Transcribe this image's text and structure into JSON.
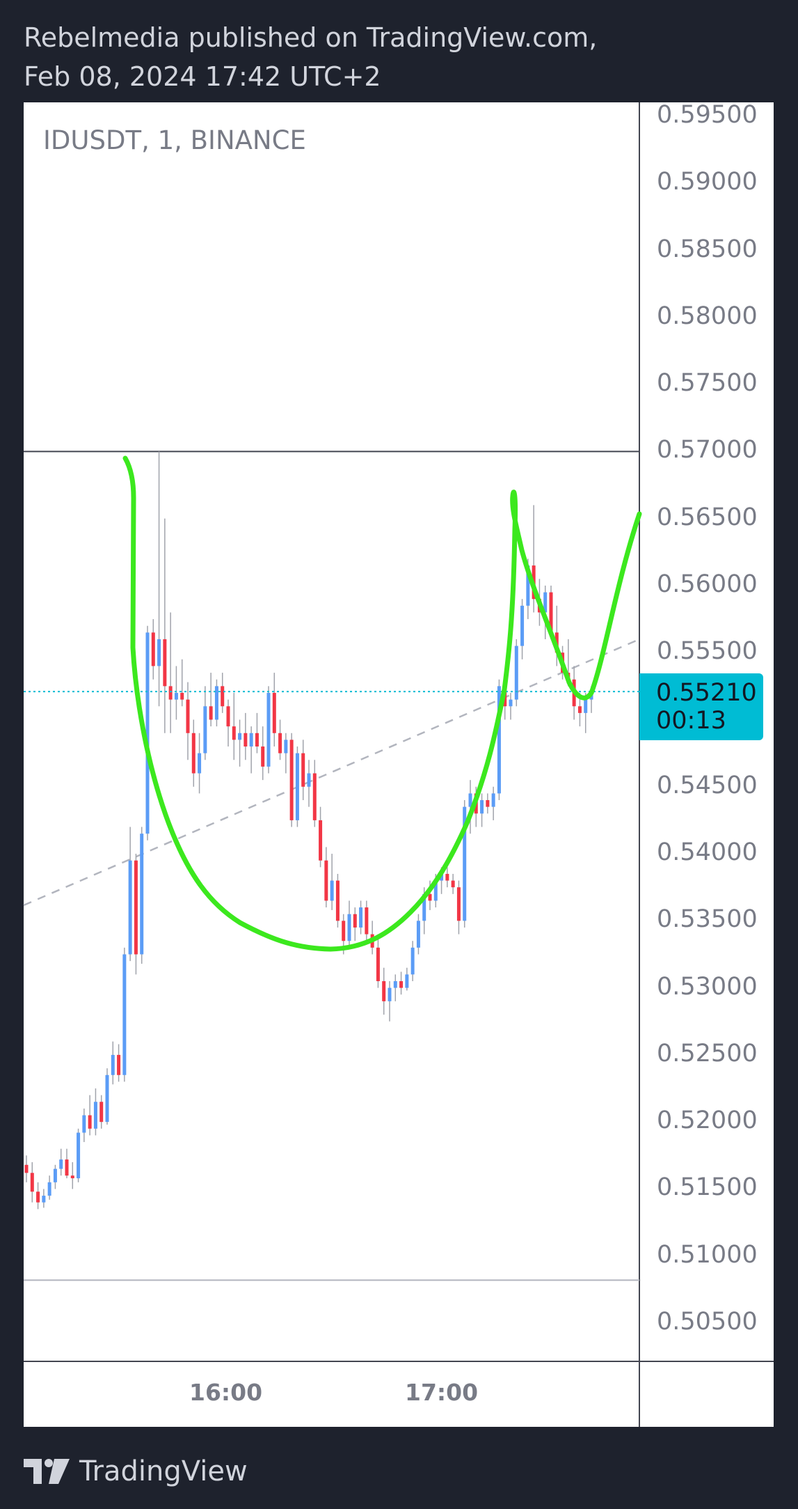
{
  "header": {
    "line1": "Rebelmedia published on TradingView.com,",
    "line2": "Feb 08, 2024 17:42 UTC+2"
  },
  "symbol": "IDUSDT, 1, BINANCE",
  "price_axis": [
    "0.59500",
    "0.59000",
    "0.58500",
    "0.58000",
    "0.57500",
    "0.57000",
    "0.56500",
    "0.56000",
    "0.55500",
    "0.55000",
    "0.54500",
    "0.54000",
    "0.53500",
    "0.53000",
    "0.52500",
    "0.52000",
    "0.51500",
    "0.51000",
    "0.50500"
  ],
  "current_price": {
    "price": "0.55210",
    "countdown": "00:13"
  },
  "time_axis": [
    "16:00",
    "17:00"
  ],
  "footer": {
    "brand": "TradingView"
  },
  "colors": {
    "up": "#5b9cf6",
    "down": "#f23645",
    "drawing": "#3ce81e",
    "price_line": "#00bcd4",
    "background": "#1e222d"
  },
  "chart_data": {
    "type": "candlestick",
    "ylim": [
      0.503,
      0.5965
    ],
    "current_price": 0.5521,
    "horizontal_lines": [
      0.57,
      0.5082
    ],
    "candles": [
      [
        0.5168,
        0.5175,
        0.5155,
        0.5162
      ],
      [
        0.5162,
        0.517,
        0.514,
        0.5148
      ],
      [
        0.5148,
        0.5155,
        0.5135,
        0.514
      ],
      [
        0.514,
        0.515,
        0.5136,
        0.5145
      ],
      [
        0.5145,
        0.516,
        0.5142,
        0.5155
      ],
      [
        0.5155,
        0.5168,
        0.515,
        0.5165
      ],
      [
        0.5165,
        0.518,
        0.516,
        0.5172
      ],
      [
        0.5172,
        0.518,
        0.5158,
        0.516
      ],
      [
        0.516,
        0.517,
        0.515,
        0.5158
      ],
      [
        0.5158,
        0.5195,
        0.5155,
        0.5192
      ],
      [
        0.5192,
        0.521,
        0.5185,
        0.5205
      ],
      [
        0.5205,
        0.522,
        0.519,
        0.5195
      ],
      [
        0.5195,
        0.5225,
        0.519,
        0.5215
      ],
      [
        0.5215,
        0.522,
        0.5195,
        0.52
      ],
      [
        0.52,
        0.524,
        0.5198,
        0.5235
      ],
      [
        0.5235,
        0.526,
        0.5228,
        0.525
      ],
      [
        0.525,
        0.5258,
        0.523,
        0.5235
      ],
      [
        0.5235,
        0.533,
        0.523,
        0.5325
      ],
      [
        0.5325,
        0.542,
        0.532,
        0.5395
      ],
      [
        0.5395,
        0.54,
        0.531,
        0.5325
      ],
      [
        0.5325,
        0.542,
        0.5318,
        0.5415
      ],
      [
        0.5415,
        0.557,
        0.541,
        0.5565
      ],
      [
        0.5565,
        0.5575,
        0.553,
        0.554
      ],
      [
        0.554,
        0.57,
        0.551,
        0.556
      ],
      [
        0.556,
        0.565,
        0.549,
        0.5525
      ],
      [
        0.5525,
        0.558,
        0.549,
        0.5515
      ],
      [
        0.5515,
        0.554,
        0.55,
        0.552
      ],
      [
        0.552,
        0.5545,
        0.551,
        0.5515
      ],
      [
        0.5515,
        0.5528,
        0.547,
        0.549
      ],
      [
        0.549,
        0.55,
        0.545,
        0.546
      ],
      [
        0.546,
        0.549,
        0.5445,
        0.5475
      ],
      [
        0.5475,
        0.5525,
        0.547,
        0.551
      ],
      [
        0.551,
        0.5535,
        0.5495,
        0.55
      ],
      [
        0.55,
        0.553,
        0.5495,
        0.5525
      ],
      [
        0.5525,
        0.5535,
        0.5505,
        0.551
      ],
      [
        0.551,
        0.5515,
        0.548,
        0.5495
      ],
      [
        0.5495,
        0.552,
        0.547,
        0.5485
      ],
      [
        0.5485,
        0.55,
        0.5465,
        0.549
      ],
      [
        0.549,
        0.5505,
        0.547,
        0.548
      ],
      [
        0.548,
        0.5495,
        0.546,
        0.549
      ],
      [
        0.549,
        0.5505,
        0.5475,
        0.548
      ],
      [
        0.548,
        0.5495,
        0.5455,
        0.5465
      ],
      [
        0.5465,
        0.5525,
        0.546,
        0.552
      ],
      [
        0.552,
        0.5535,
        0.548,
        0.549
      ],
      [
        0.549,
        0.55,
        0.547,
        0.5475
      ],
      [
        0.5475,
        0.549,
        0.546,
        0.5485
      ],
      [
        0.5485,
        0.549,
        0.542,
        0.5425
      ],
      [
        0.5425,
        0.548,
        0.542,
        0.5475
      ],
      [
        0.5475,
        0.5485,
        0.544,
        0.545
      ],
      [
        0.545,
        0.547,
        0.5435,
        0.546
      ],
      [
        0.546,
        0.547,
        0.542,
        0.5425
      ],
      [
        0.5425,
        0.5435,
        0.539,
        0.5395
      ],
      [
        0.5395,
        0.5405,
        0.536,
        0.5365
      ],
      [
        0.5365,
        0.54,
        0.5358,
        0.538
      ],
      [
        0.538,
        0.5385,
        0.5345,
        0.535
      ],
      [
        0.535,
        0.5355,
        0.5325,
        0.5335
      ],
      [
        0.5335,
        0.5365,
        0.533,
        0.5355
      ],
      [
        0.5355,
        0.536,
        0.5335,
        0.5345
      ],
      [
        0.5345,
        0.5365,
        0.534,
        0.536
      ],
      [
        0.536,
        0.5365,
        0.5335,
        0.534
      ],
      [
        0.534,
        0.535,
        0.5325,
        0.533
      ],
      [
        0.533,
        0.534,
        0.53,
        0.5305
      ],
      [
        0.5305,
        0.5315,
        0.528,
        0.529
      ],
      [
        0.529,
        0.5305,
        0.5275,
        0.53
      ],
      [
        0.53,
        0.531,
        0.529,
        0.5305
      ],
      [
        0.5305,
        0.5312,
        0.5295,
        0.53
      ],
      [
        0.53,
        0.5315,
        0.5298,
        0.531
      ],
      [
        0.531,
        0.5335,
        0.5305,
        0.533
      ],
      [
        0.533,
        0.5355,
        0.5325,
        0.535
      ],
      [
        0.535,
        0.5375,
        0.534,
        0.537
      ],
      [
        0.537,
        0.538,
        0.5358,
        0.5365
      ],
      [
        0.5365,
        0.5385,
        0.536,
        0.538
      ],
      [
        0.538,
        0.539,
        0.537,
        0.5385
      ],
      [
        0.5385,
        0.539,
        0.5375,
        0.538
      ],
      [
        0.538,
        0.5385,
        0.537,
        0.5375
      ],
      [
        0.5375,
        0.538,
        0.534,
        0.535
      ],
      [
        0.535,
        0.544,
        0.5345,
        0.5435
      ],
      [
        0.5435,
        0.5455,
        0.5415,
        0.5445
      ],
      [
        0.5445,
        0.545,
        0.542,
        0.543
      ],
      [
        0.543,
        0.5445,
        0.542,
        0.544
      ],
      [
        0.544,
        0.5445,
        0.543,
        0.5435
      ],
      [
        0.5435,
        0.545,
        0.5425,
        0.5445
      ],
      [
        0.5445,
        0.553,
        0.544,
        0.5525
      ],
      [
        0.5525,
        0.553,
        0.55,
        0.551
      ],
      [
        0.551,
        0.552,
        0.55,
        0.5515
      ],
      [
        0.5515,
        0.556,
        0.551,
        0.5555
      ],
      [
        0.5555,
        0.559,
        0.5545,
        0.5585
      ],
      [
        0.5585,
        0.562,
        0.5575,
        0.5615
      ],
      [
        0.5615,
        0.566,
        0.558,
        0.559
      ],
      [
        0.559,
        0.5605,
        0.557,
        0.558
      ],
      [
        0.558,
        0.56,
        0.556,
        0.5595
      ],
      [
        0.5595,
        0.56,
        0.556,
        0.5565
      ],
      [
        0.5565,
        0.5585,
        0.554,
        0.555
      ],
      [
        0.555,
        0.5555,
        0.553,
        0.5535
      ],
      [
        0.5535,
        0.556,
        0.5525,
        0.553
      ],
      [
        0.553,
        0.554,
        0.55,
        0.551
      ],
      [
        0.551,
        0.552,
        0.5495,
        0.5505
      ],
      [
        0.5505,
        0.552,
        0.549,
        0.5515
      ],
      [
        0.5515,
        0.5525,
        0.5505,
        0.5521
      ]
    ]
  }
}
